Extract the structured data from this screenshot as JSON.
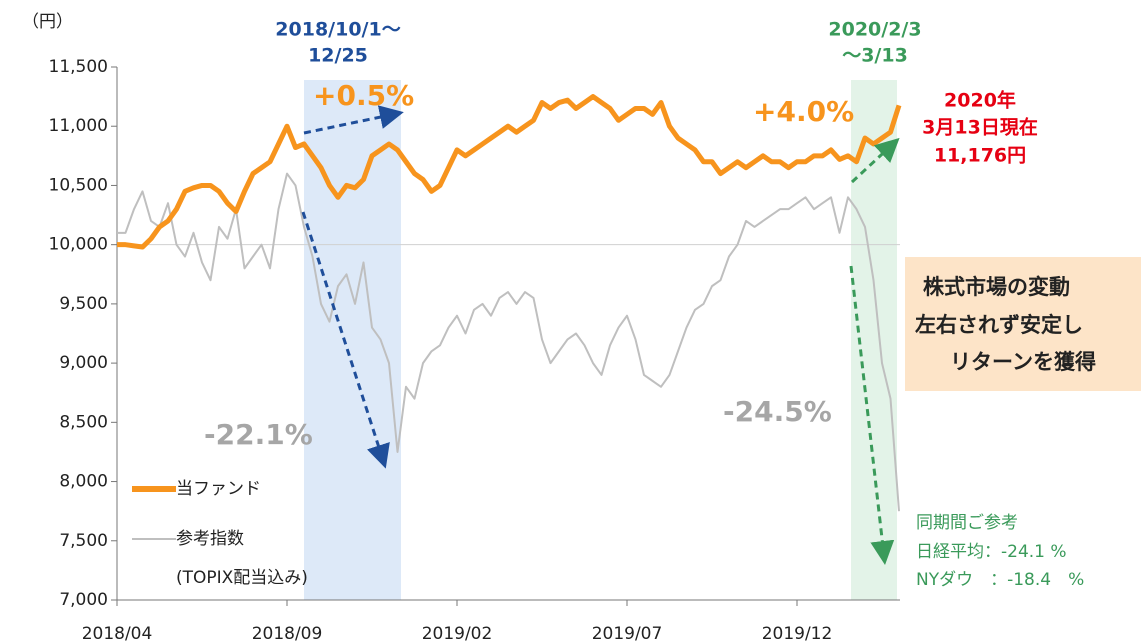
{
  "chart_data": {
    "type": "line",
    "y_unit": "（円）",
    "categories": [
      "2018/04",
      null,
      null,
      null,
      null,
      null,
      null,
      null,
      null,
      null,
      null,
      null,
      null,
      null,
      null,
      null,
      null,
      null,
      null,
      null,
      "2018/09",
      null,
      null,
      null,
      null,
      null,
      null,
      null,
      null,
      null,
      null,
      null,
      null,
      null,
      null,
      null,
      null,
      null,
      null,
      null,
      "2019/02",
      null,
      null,
      null,
      null,
      null,
      null,
      null,
      null,
      null,
      null,
      null,
      null,
      null,
      null,
      null,
      null,
      null,
      null,
      null,
      "2019/07",
      null,
      null,
      null,
      null,
      null,
      null,
      null,
      null,
      null,
      null,
      null,
      null,
      null,
      null,
      null,
      null,
      null,
      null,
      null,
      "2019/12",
      null,
      null,
      null,
      null,
      null,
      null,
      null,
      null,
      null,
      null,
      null,
      null
    ],
    "series": [
      {
        "name": "当ファンド",
        "color": "#f7941d",
        "values": [
          10000,
          10000,
          9990,
          9980,
          10050,
          10150,
          10200,
          10300,
          10450,
          10480,
          10500,
          10500,
          10450,
          10350,
          10280,
          10450,
          10600,
          10650,
          10700,
          10850,
          11000,
          10820,
          10850,
          10750,
          10650,
          10500,
          10400,
          10500,
          10480,
          10550,
          10750,
          10800,
          10850,
          10800,
          10700,
          10600,
          10550,
          10450,
          10500,
          10650,
          10800,
          10750,
          10800,
          10850,
          10900,
          10950,
          11000,
          10950,
          11000,
          11050,
          11200,
          11150,
          11200,
          11220,
          11150,
          11200,
          11250,
          11200,
          11150,
          11050,
          11100,
          11150,
          11150,
          11100,
          11200,
          11000,
          10900,
          10850,
          10800,
          10700,
          10700,
          10600,
          10650,
          10700,
          10650,
          10700,
          10750,
          10700,
          10700,
          10650,
          10700,
          10700,
          10750,
          10750,
          10800,
          10720,
          10750,
          10700,
          10900,
          10850,
          10900,
          10950,
          11176
        ]
      },
      {
        "name": "参考指数",
        "color": "#bfbfbf",
        "values": [
          10100,
          10100,
          10300,
          10450,
          10200,
          10150,
          10350,
          10000,
          9900,
          10100,
          9850,
          9700,
          10150,
          10050,
          10300,
          9800,
          9900,
          10000,
          9800,
          10300,
          10600,
          10500,
          10150,
          9900,
          9500,
          9350,
          9650,
          9750,
          9500,
          9850,
          9300,
          9200,
          9000,
          8250,
          8800,
          8700,
          9000,
          9100,
          9150,
          9300,
          9400,
          9250,
          9450,
          9500,
          9400,
          9550,
          9600,
          9500,
          9600,
          9550,
          9200,
          9000,
          9100,
          9200,
          9250,
          9150,
          9000,
          8900,
          9150,
          9300,
          9400,
          9200,
          8900,
          8850,
          8800,
          8900,
          9100,
          9300,
          9450,
          9500,
          9650,
          9700,
          9900,
          10000,
          10200,
          10150,
          10200,
          10250,
          10300,
          10300,
          10350,
          10400,
          10300,
          10350,
          10400,
          10100,
          10400,
          10300,
          10150,
          9700,
          9000,
          8700,
          7750
        ]
      }
    ],
    "legend_note": "(TOPIX配当込み)",
    "ylim": [
      7000,
      11500
    ],
    "yticks": [
      {
        "value": 7000,
        "label": "7,000"
      },
      {
        "value": 7500,
        "label": "7,500"
      },
      {
        "value": 8000,
        "label": "8,000"
      },
      {
        "value": 8500,
        "label": "8,500"
      },
      {
        "value": 9000,
        "label": "9,000"
      },
      {
        "value": 9500,
        "label": "9,500"
      },
      {
        "value": 10000,
        "label": "10,000"
      },
      {
        "value": 10500,
        "label": "10,500"
      },
      {
        "value": 11000,
        "label": "11,000"
      },
      {
        "value": 11500,
        "label": "11,500"
      }
    ],
    "annotations": {
      "period1": [
        "2018/10/1～",
        "12/25"
      ],
      "period2": [
        "2020/2/3",
        "～3/13"
      ],
      "fund_change1": "+0.5%",
      "fund_change2": "+4.0%",
      "index_change1": "-22.1%",
      "index_change2": "-24.5%",
      "current": [
        "2020年",
        "3月13日現在",
        "11,176円"
      ],
      "message": [
        "株式市場の変動",
        "左右されず安定し",
        "リターンを獲得"
      ],
      "reference": [
        "同期間ご参考",
        "日経平均：-24.1 %",
        "NYダウ　：-18.4　%"
      ]
    }
  }
}
